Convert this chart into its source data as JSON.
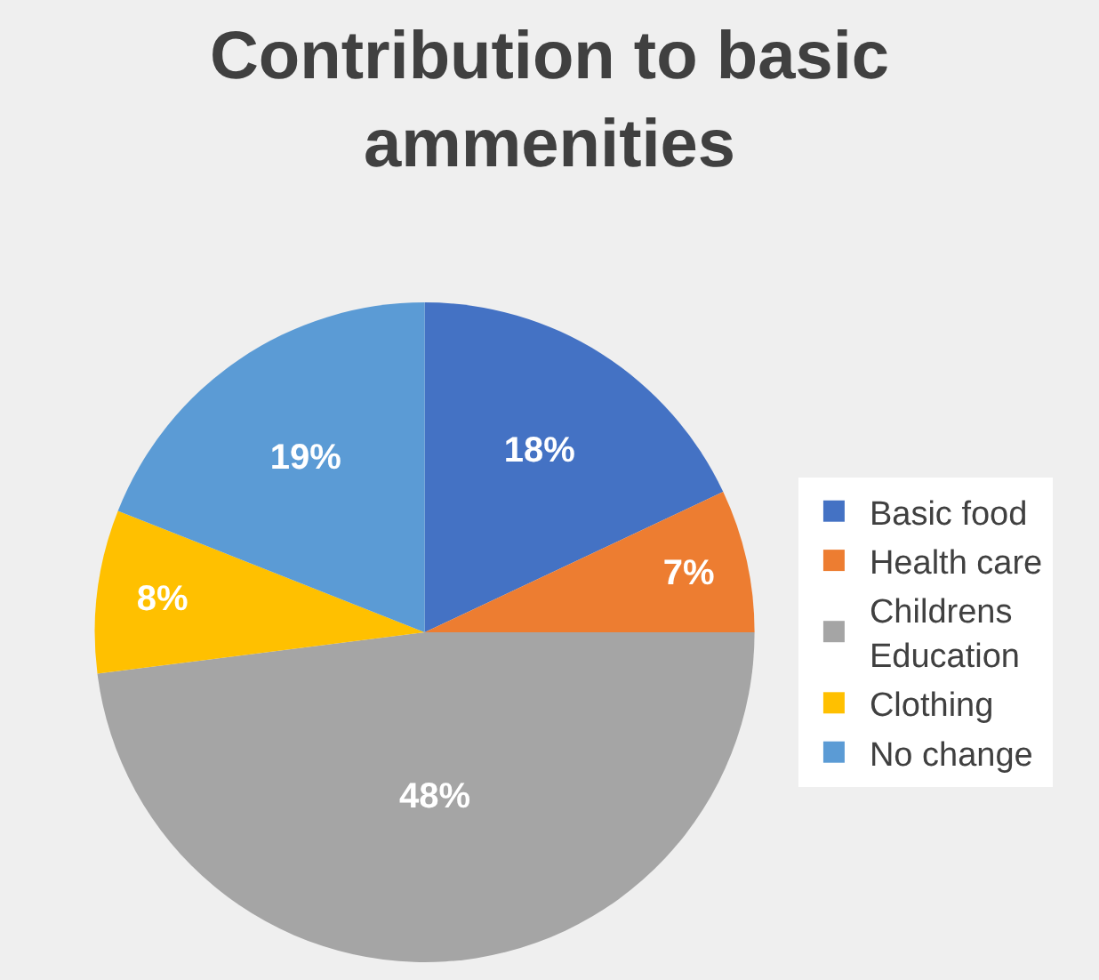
{
  "chart_data": {
    "type": "pie",
    "title": "Contribution to basic ammenities",
    "categories": [
      "Basic food",
      "Health care",
      "Childrens Education",
      "Clothing",
      "No change"
    ],
    "values": [
      18,
      7,
      48,
      8,
      19
    ],
    "colors": [
      "#4472c4",
      "#ed7d31",
      "#a5a5a5",
      "#ffc000",
      "#5b9bd5"
    ],
    "value_labels": [
      "18%",
      "7%",
      "48%",
      "8%",
      "19%"
    ],
    "legend": "right"
  }
}
